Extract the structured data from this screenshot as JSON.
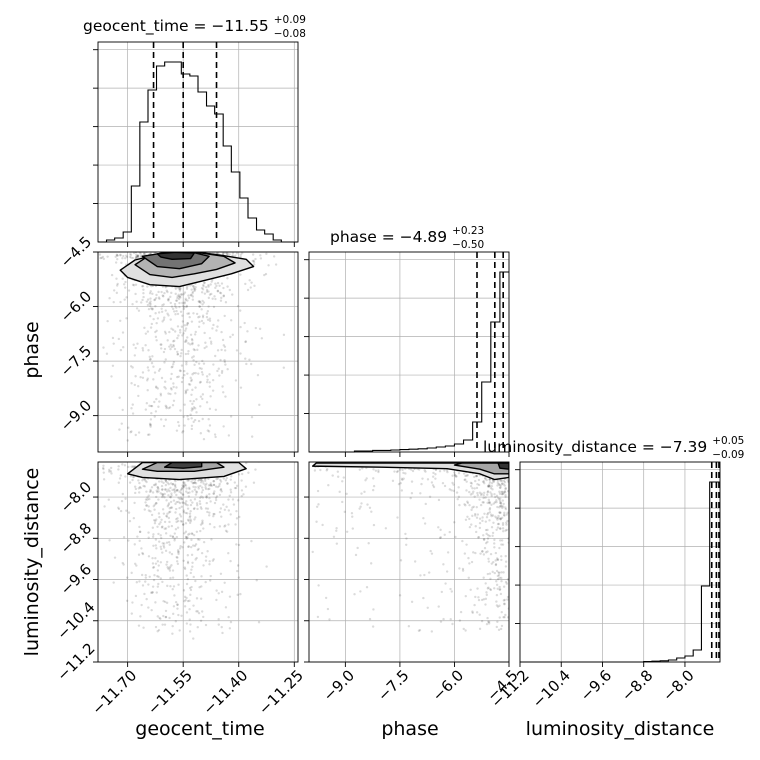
{
  "chart_data": {
    "type": "corner",
    "parameters": [
      {
        "name": "geocent_time",
        "axis_label": "geocent_time",
        "title_base": "geocent_time = −11.55",
        "title_plus": "+0.09",
        "title_minus": "−0.08",
        "range": [
          -11.78,
          -11.24
        ],
        "ticks": [
          -11.7,
          -11.55,
          -11.4,
          -11.25
        ],
        "tick_labels": [
          "−11.70",
          "−11.55",
          "−11.40",
          "−11.25"
        ],
        "quantiles": [
          -11.63,
          -11.55,
          -11.46
        ],
        "hist_bin_edges": [
          -11.78,
          -11.757,
          -11.735,
          -11.712,
          -11.69,
          -11.667,
          -11.645,
          -11.622,
          -11.6,
          -11.577,
          -11.555,
          -11.532,
          -11.51,
          -11.487,
          -11.465,
          -11.442,
          -11.42,
          -11.397,
          -11.375,
          -11.352,
          -11.33,
          -11.307,
          -11.285,
          -11.262,
          -11.24
        ],
        "hist_counts": [
          0.0,
          0.01,
          0.02,
          0.05,
          0.28,
          0.6,
          0.76,
          0.88,
          0.9,
          0.9,
          0.84,
          0.83,
          0.75,
          0.68,
          0.64,
          0.48,
          0.35,
          0.22,
          0.12,
          0.06,
          0.04,
          0.01,
          0.0,
          0.0
        ]
      },
      {
        "name": "phase",
        "axis_label": "phase",
        "title_base": "phase = −4.89",
        "title_plus": "+0.23",
        "title_minus": "−0.50",
        "range": [
          -10.0,
          -4.5
        ],
        "ticks": [
          -9.0,
          -7.5,
          -6.0,
          -4.5
        ],
        "tick_labels": [
          "−9.0",
          "−7.5",
          "−6.0",
          "−4.5"
        ],
        "quantiles": [
          -5.38,
          -4.89,
          -4.66
        ],
        "hist_bin_edges": [
          -10.0,
          -9.75,
          -9.5,
          -9.25,
          -9.0,
          -8.75,
          -8.5,
          -8.25,
          -8.0,
          -7.75,
          -7.5,
          -7.25,
          -7.0,
          -6.75,
          -6.5,
          -6.25,
          -6.0,
          -5.75,
          -5.5,
          -5.25,
          -5.0,
          -4.75,
          -4.5
        ],
        "hist_counts": [
          0.0,
          0.0,
          0.0,
          0.0,
          0.0,
          0.005,
          0.005,
          0.008,
          0.008,
          0.01,
          0.012,
          0.014,
          0.016,
          0.02,
          0.025,
          0.03,
          0.04,
          0.06,
          0.15,
          0.35,
          0.65,
          0.9
        ]
      },
      {
        "name": "luminosity_distance",
        "axis_label": "luminosity_distance",
        "title_base": "luminosity_distance = −7.39",
        "title_plus": "+0.05",
        "title_minus": "−0.09",
        "range": [
          -11.2,
          -7.32
        ],
        "ticks": [
          -11.2,
          -10.4,
          -9.6,
          -8.8,
          -8.0
        ],
        "tick_labels": [
          "−11.2",
          "−10.4",
          "−9.6",
          "−8.8",
          "−8.0"
        ],
        "quantiles": [
          -7.48,
          -7.39,
          -7.34
        ],
        "hist_bin_edges": [
          -11.2,
          -11.04,
          -10.88,
          -10.72,
          -10.56,
          -10.4,
          -10.24,
          -10.08,
          -9.92,
          -9.76,
          -9.6,
          -9.44,
          -9.28,
          -9.12,
          -8.96,
          -8.8,
          -8.64,
          -8.48,
          -8.32,
          -8.16,
          -8.0,
          -7.84,
          -7.68,
          -7.52,
          -7.32
        ],
        "hist_counts": [
          0.0,
          0.0,
          0.0,
          0.0,
          0.0,
          0.0,
          0.0,
          0.0,
          0.0,
          0.0,
          0.0,
          0.0,
          0.0,
          0.0,
          0.0,
          0.002,
          0.004,
          0.006,
          0.01,
          0.02,
          0.03,
          0.06,
          0.38,
          0.9
        ]
      }
    ],
    "density_panels": [
      {
        "x_param": "geocent_time",
        "y_param": "phase",
        "y_range": [
          -10.0,
          -4.5
        ],
        "y_ticks": [
          -9.0,
          -7.5,
          -6.0,
          -4.5
        ],
        "y_tick_labels": [
          "−9.0",
          "−7.5",
          "−6.0",
          "−4.5"
        ],
        "contour_levels": [
          {
            "fill": 0.12,
            "points": [
              [
                -11.72,
                -5.0
              ],
              [
                -11.68,
                -4.72
              ],
              [
                -11.6,
                -4.52
              ],
              [
                -11.5,
                -4.52
              ],
              [
                -11.44,
                -4.6
              ],
              [
                -11.38,
                -4.7
              ],
              [
                -11.36,
                -4.9
              ],
              [
                -11.42,
                -5.1
              ],
              [
                -11.48,
                -5.25
              ],
              [
                -11.56,
                -5.45
              ],
              [
                -11.64,
                -5.4
              ],
              [
                -11.7,
                -5.2
              ]
            ]
          },
          {
            "fill": 0.3,
            "points": [
              [
                -11.68,
                -4.85
              ],
              [
                -11.65,
                -4.65
              ],
              [
                -11.58,
                -4.53
              ],
              [
                -11.5,
                -4.53
              ],
              [
                -11.44,
                -4.62
              ],
              [
                -11.41,
                -4.8
              ],
              [
                -11.46,
                -4.98
              ],
              [
                -11.52,
                -5.1
              ],
              [
                -11.58,
                -5.2
              ],
              [
                -11.64,
                -5.12
              ]
            ]
          },
          {
            "fill": 0.55,
            "points": [
              [
                -11.66,
                -4.62
              ],
              [
                -11.6,
                -4.52
              ],
              [
                -11.52,
                -4.52
              ],
              [
                -11.48,
                -4.62
              ],
              [
                -11.5,
                -4.82
              ],
              [
                -11.56,
                -4.96
              ],
              [
                -11.62,
                -4.9
              ]
            ]
          },
          {
            "fill": 0.8,
            "points": [
              [
                -11.62,
                -4.55
              ],
              [
                -11.57,
                -4.51
              ],
              [
                -11.52,
                -4.53
              ],
              [
                -11.53,
                -4.68
              ],
              [
                -11.58,
                -4.7
              ],
              [
                -11.61,
                -4.64
              ]
            ]
          }
        ],
        "scatter": {
          "count": 1300,
          "x_center": -11.56,
          "x_spread": 0.085,
          "y_peak": -4.6,
          "y_tail": -9.6,
          "seed": 11
        }
      },
      {
        "x_param": "geocent_time",
        "y_param": "luminosity_distance",
        "y_range": [
          -11.2,
          -7.32
        ],
        "y_ticks": [
          -11.2,
          -10.4,
          -9.6,
          -8.8,
          -8.0
        ],
        "y_tick_labels": [
          "−11.2",
          "−10.4",
          "−9.6",
          "−8.8",
          "−8.0"
        ],
        "contour_levels": [
          {
            "fill": 0.12,
            "points": [
              [
                -11.7,
                -7.55
              ],
              [
                -11.66,
                -7.33
              ],
              [
                -11.4,
                -7.33
              ],
              [
                -11.38,
                -7.45
              ],
              [
                -11.44,
                -7.6
              ],
              [
                -11.56,
                -7.66
              ],
              [
                -11.66,
                -7.62
              ]
            ]
          },
          {
            "fill": 0.35,
            "points": [
              [
                -11.66,
                -7.46
              ],
              [
                -11.62,
                -7.33
              ],
              [
                -11.46,
                -7.33
              ],
              [
                -11.44,
                -7.42
              ],
              [
                -11.52,
                -7.5
              ],
              [
                -11.62,
                -7.5
              ]
            ]
          },
          {
            "fill": 0.75,
            "points": [
              [
                -11.6,
                -7.42
              ],
              [
                -11.58,
                -7.33
              ],
              [
                -11.5,
                -7.33
              ],
              [
                -11.5,
                -7.41
              ],
              [
                -11.55,
                -7.44
              ]
            ]
          }
        ],
        "scatter": {
          "count": 1100,
          "x_center": -11.56,
          "x_spread": 0.085,
          "y_peak": -7.42,
          "y_tail": -10.6,
          "seed": 23
        }
      },
      {
        "x_param": "phase",
        "y_param": "luminosity_distance",
        "y_range": [
          -11.2,
          -7.32
        ],
        "contour_levels": [
          {
            "fill": 0.12,
            "points": [
              [
                -9.9,
                -7.4
              ],
              [
                -9.8,
                -7.34
              ],
              [
                -4.5,
                -7.34
              ],
              [
                -4.5,
                -7.62
              ],
              [
                -4.9,
                -7.66
              ],
              [
                -5.3,
                -7.55
              ],
              [
                -6.2,
                -7.45
              ],
              [
                -8.0,
                -7.42
              ]
            ]
          },
          {
            "fill": 0.35,
            "points": [
              [
                -6.0,
                -7.38
              ],
              [
                -5.8,
                -7.34
              ],
              [
                -4.5,
                -7.34
              ],
              [
                -4.5,
                -7.55
              ],
              [
                -4.9,
                -7.55
              ],
              [
                -5.3,
                -7.46
              ]
            ]
          },
          {
            "fill": 0.8,
            "points": [
              [
                -4.8,
                -7.34
              ],
              [
                -4.5,
                -7.34
              ],
              [
                -4.5,
                -7.46
              ],
              [
                -4.75,
                -7.44
              ]
            ]
          }
        ],
        "scatter": {
          "count": 1100,
          "x_center": -4.7,
          "x_spread": 0.6,
          "y_peak": -7.42,
          "y_tail": -10.6,
          "seed": 37,
          "x_tail_to": -9.9
        }
      }
    ]
  }
}
